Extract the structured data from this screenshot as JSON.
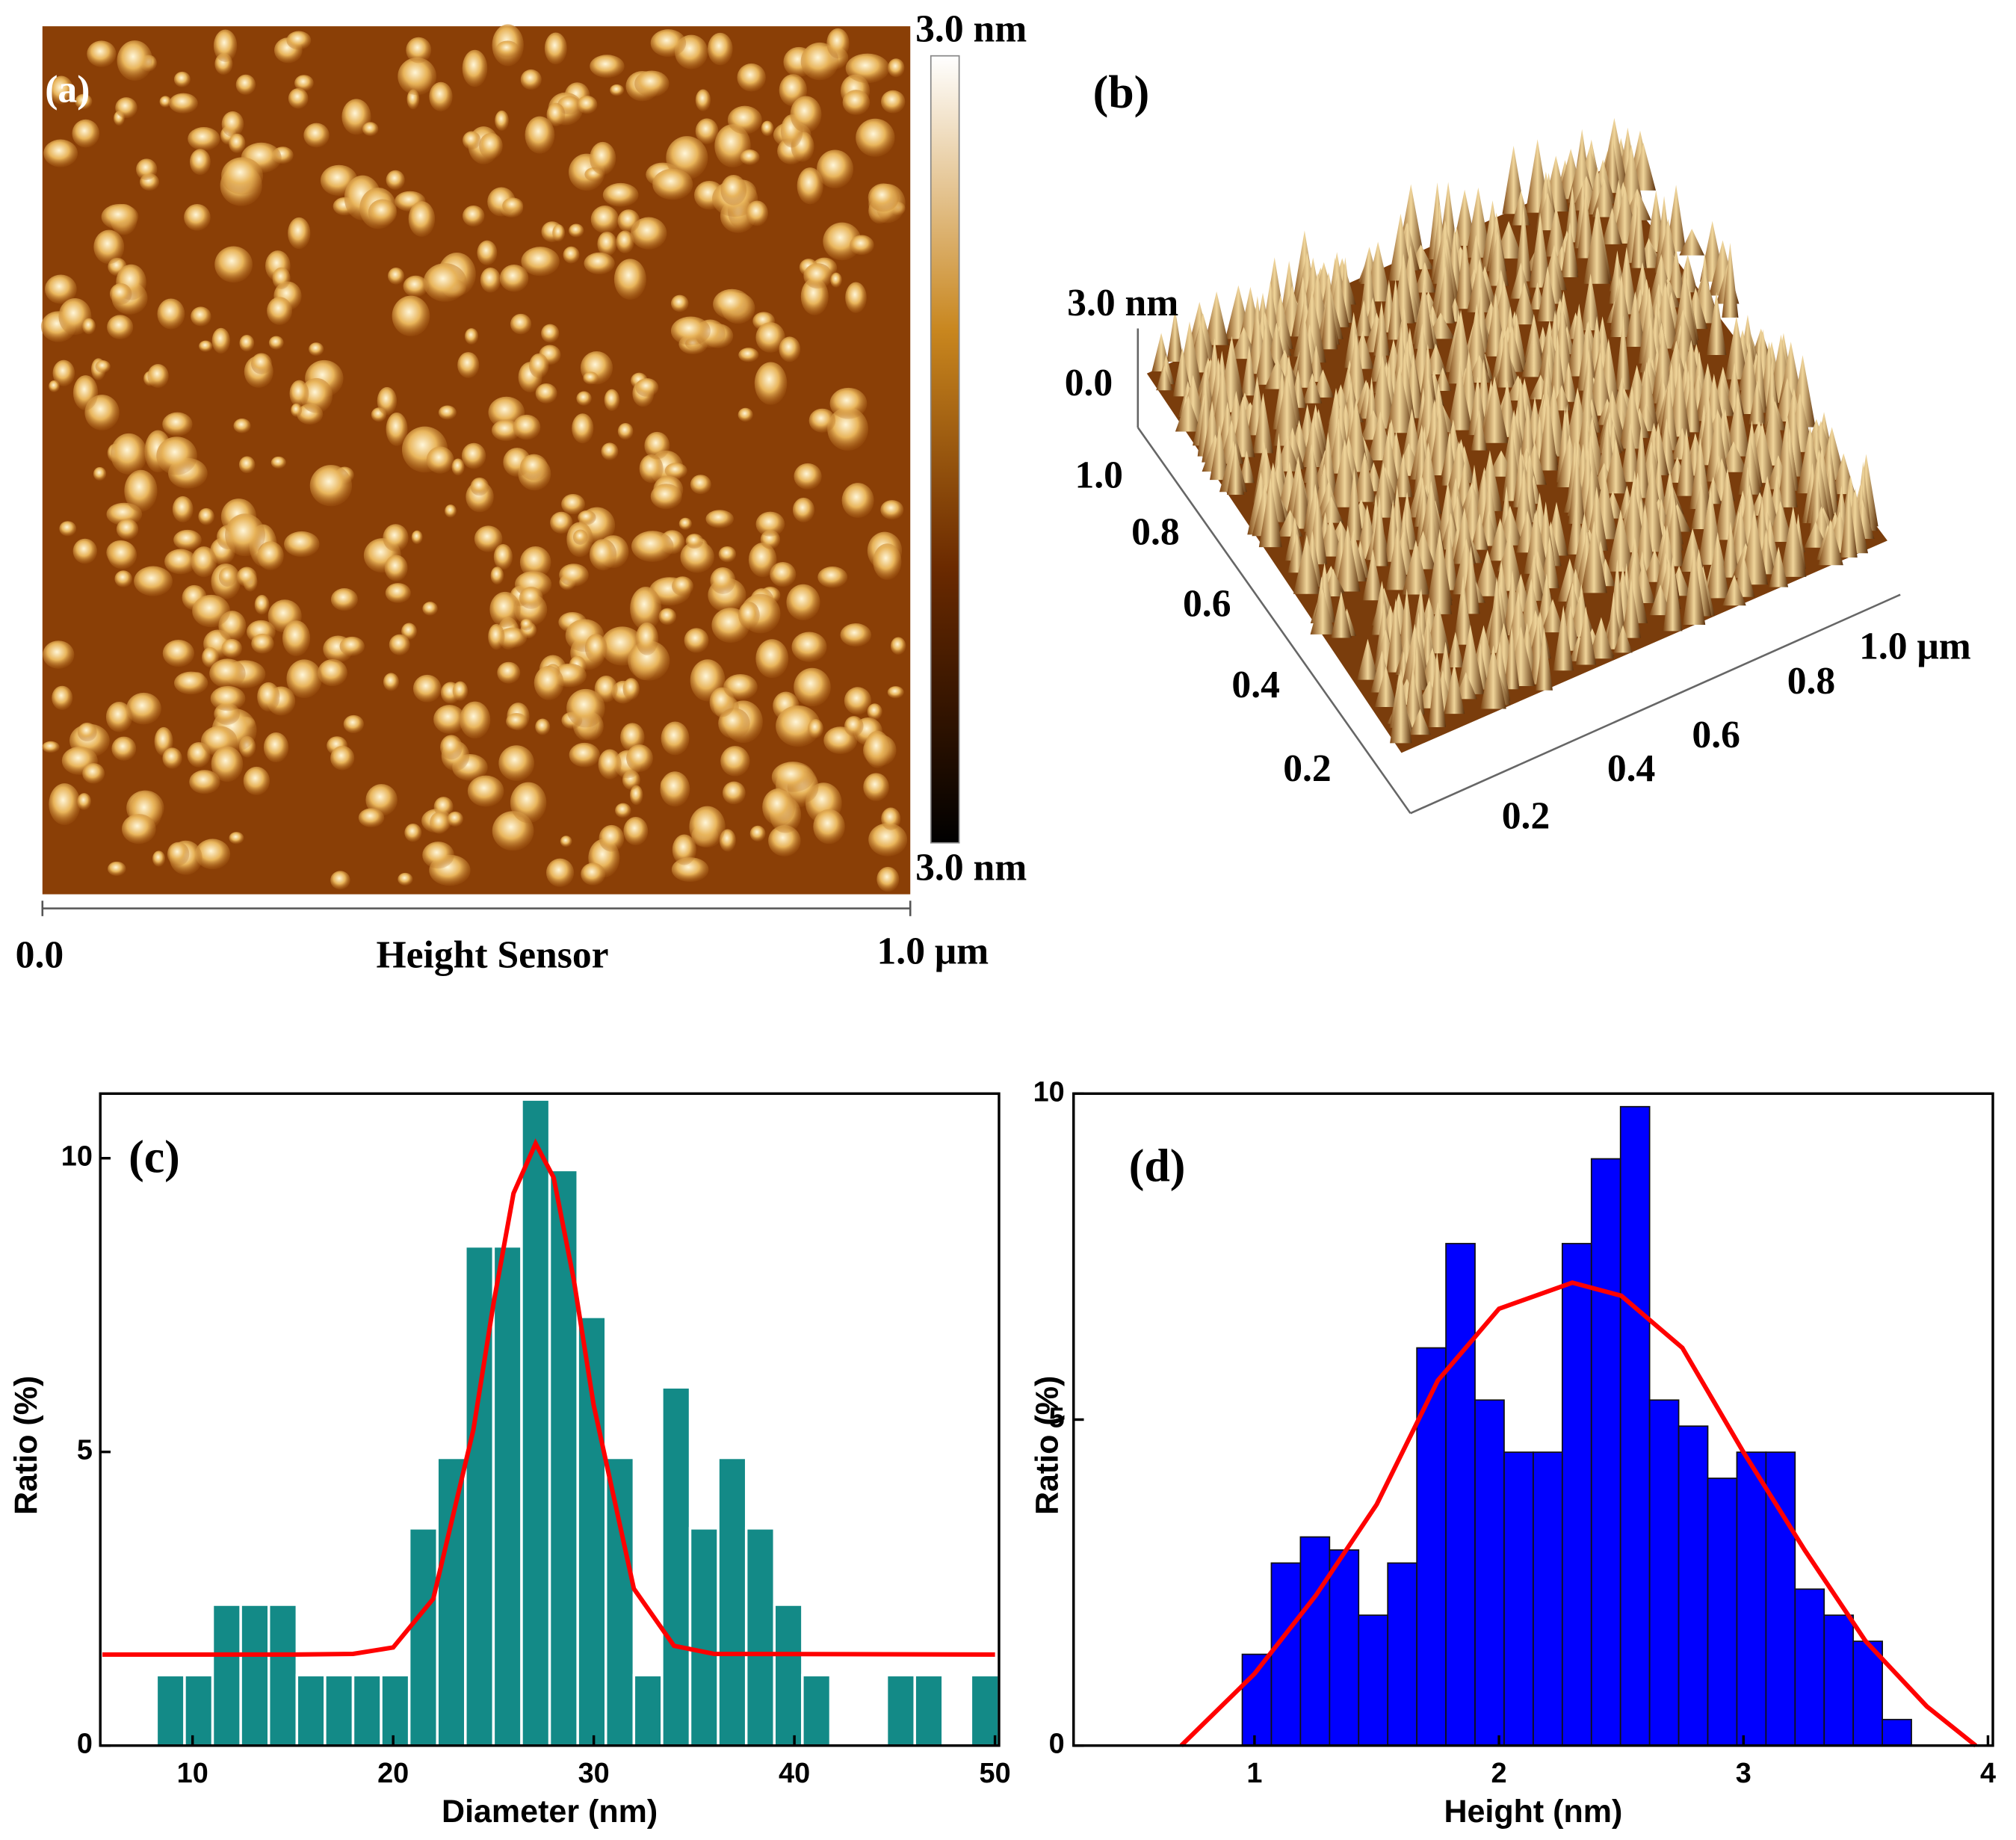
{
  "panel_a": {
    "label": "(a)",
    "scale_max": "3.0 nm",
    "scale_min": "3.0 nm",
    "x_start": "0.0",
    "x_label": "Height Sensor",
    "x_end": "1.0 μm"
  },
  "panel_b": {
    "label": "(b)",
    "z_labels": [
      "3.0 nm",
      "0.0"
    ],
    "y_labels": [
      "1.0",
      "0.8",
      "0.6",
      "0.4",
      "0.2"
    ],
    "x_labels": [
      "0.2",
      "0.4",
      "0.6",
      "0.8",
      "1.0 μm"
    ]
  },
  "chart_data": [
    {
      "type": "histogram",
      "label": "(c)",
      "xlabel": "Diameter (nm)",
      "ylabel": "Ratio (%)",
      "color": "#138a87",
      "bins": [
        8.2,
        9.6,
        11.0,
        12.4,
        13.8,
        15.2,
        16.6,
        18.0,
        19.4,
        20.8,
        22.2,
        23.6,
        25.0,
        26.4,
        27.8,
        29.2,
        30.6,
        32.0,
        33.4,
        34.8,
        36.2,
        37.6,
        39.0,
        40.4,
        41.8,
        43.2,
        44.6,
        46.0,
        47.4,
        48.8,
        50.2
      ],
      "values": [
        1.2,
        1.2,
        2.4,
        2.4,
        2.4,
        1.2,
        1.2,
        1.2,
        1.2,
        3.7,
        4.9,
        8.5,
        8.5,
        11.0,
        9.8,
        7.3,
        4.9,
        1.2,
        6.1,
        3.7,
        4.9,
        3.7,
        2.4,
        1.2,
        0,
        0,
        1.2,
        1.2,
        0,
        1.2
      ],
      "fit": {
        "color": "#ff0000",
        "x": [
          5.5,
          15,
          18,
          20,
          22,
          24,
          25,
          26,
          27.1,
          28,
          29,
          30,
          32,
          34,
          36,
          50
        ],
        "values": [
          1.55,
          1.55,
          1.56,
          1.67,
          2.5,
          5.38,
          7.52,
          9.4,
          10.25,
          9.67,
          7.94,
          5.79,
          2.67,
          1.7,
          1.56,
          1.55
        ]
      },
      "xlim": [
        5.4,
        50.2
      ],
      "ylim": [
        0,
        11.1
      ],
      "xticks": [
        10,
        20,
        30,
        40,
        50
      ],
      "yticks": [
        0,
        5,
        10
      ]
    },
    {
      "type": "histogram",
      "label": "(d)",
      "xlabel": "Height (nm)",
      "ylabel": "Ratio (%)",
      "color": "#0000ff",
      "bins": [
        0.95,
        1.069,
        1.188,
        1.307,
        1.426,
        1.545,
        1.664,
        1.783,
        1.902,
        2.021,
        2.14,
        2.259,
        2.378,
        2.497,
        2.616,
        2.735,
        2.854,
        2.973,
        3.092,
        3.211,
        3.33,
        3.449,
        3.568,
        3.687
      ],
      "values": [
        1.4,
        2.8,
        3.2,
        3.0,
        2.0,
        2.8,
        6.1,
        7.7,
        5.3,
        4.5,
        4.5,
        7.7,
        9.0,
        9.8,
        5.3,
        4.9,
        4.1,
        4.5,
        4.5,
        2.4,
        2.0,
        1.6,
        0.4
      ],
      "fit": {
        "color": "#ff0000",
        "x": [
          0.7,
          1.0,
          1.25,
          1.5,
          1.75,
          2.0,
          2.3,
          2.5,
          2.75,
          3.0,
          3.25,
          3.5,
          3.75,
          3.95
        ],
        "values": [
          0,
          1.1,
          2.3,
          3.7,
          5.6,
          6.7,
          7.1,
          6.9,
          6.1,
          4.5,
          3.0,
          1.6,
          0.6,
          0
        ]
      },
      "xlim": [
        0.26,
        4.02
      ],
      "ylim": [
        0,
        10
      ],
      "xticks": [
        1,
        2,
        3,
        4
      ],
      "yticks": [
        0,
        5,
        10
      ]
    }
  ]
}
